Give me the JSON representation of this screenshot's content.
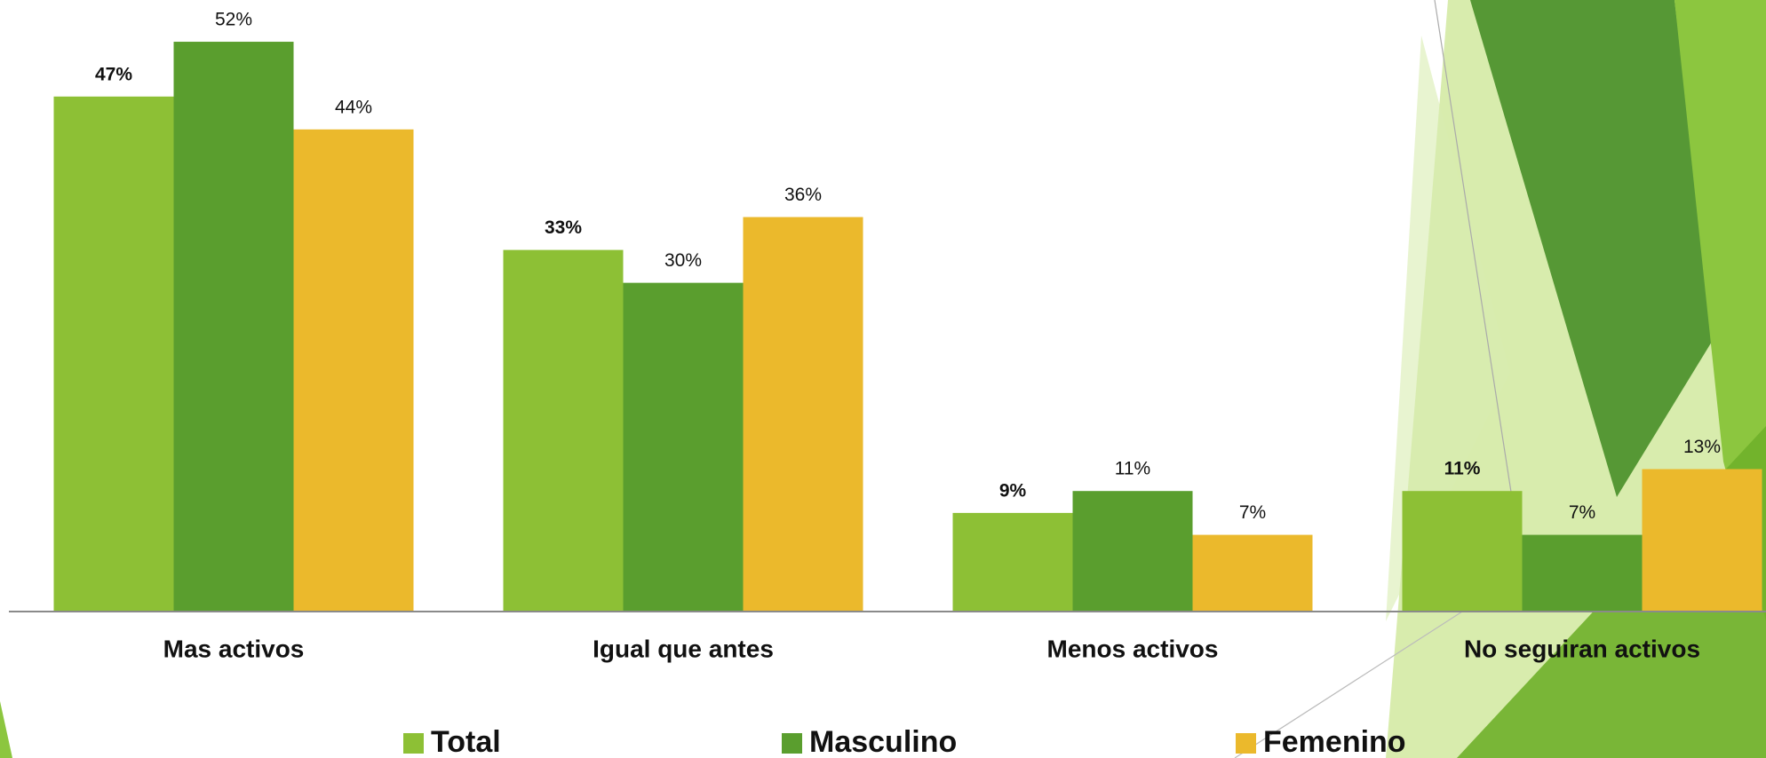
{
  "chart_data": {
    "type": "bar",
    "categories": [
      "Mas activos",
      "Igual que antes",
      "Menos activos",
      "No seguiran activos"
    ],
    "series": [
      {
        "name": "Total",
        "color": "#8dc035",
        "values": [
          47,
          33,
          9,
          11
        ],
        "value_labels": [
          "47%",
          "33%",
          "9%",
          "11%"
        ]
      },
      {
        "name": "Masculino",
        "color": "#5a9e2e",
        "values": [
          52,
          30,
          11,
          7
        ],
        "value_labels": [
          "52%",
          "30%",
          "11%",
          "7%"
        ]
      },
      {
        "name": "Femenino",
        "color": "#ebb92c",
        "values": [
          44,
          36,
          7,
          13
        ],
        "value_labels": [
          "44%",
          "36%",
          "7%",
          "13%"
        ]
      }
    ],
    "ylim": [
      0,
      55
    ],
    "legend": "bottom"
  }
}
